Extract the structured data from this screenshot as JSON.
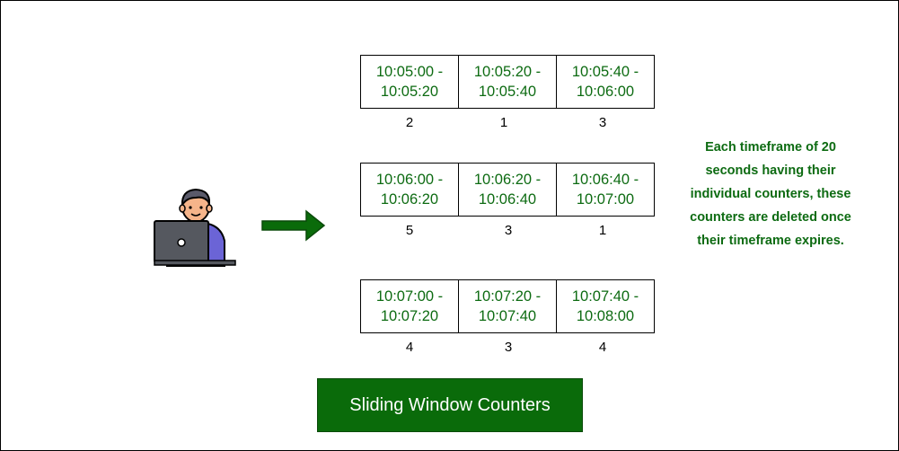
{
  "rows": [
    {
      "windows": [
        {
          "start": "10:05:00 -",
          "end": "10:05:20",
          "count": "2"
        },
        {
          "start": "10:05:20 -",
          "end": "10:05:40",
          "count": "1"
        },
        {
          "start": "10:05:40 -",
          "end": "10:06:00",
          "count": "3"
        }
      ]
    },
    {
      "windows": [
        {
          "start": "10:06:00 -",
          "end": "10:06:20",
          "count": "5"
        },
        {
          "start": "10:06:20 -",
          "end": "10:06:40",
          "count": "3"
        },
        {
          "start": "10:06:40 -",
          "end": "10:07:00",
          "count": "1"
        }
      ]
    },
    {
      "windows": [
        {
          "start": "10:07:00 -",
          "end": "10:07:20",
          "count": "4"
        },
        {
          "start": "10:07:20 -",
          "end": "10:07:40",
          "count": "3"
        },
        {
          "start": "10:07:40 -",
          "end": "10:08:00",
          "count": "4"
        }
      ]
    }
  ],
  "note": {
    "line1": "Each timeframe of 20",
    "line2": "seconds having their",
    "line3": "individual counters, these",
    "line4": "counters are deleted once",
    "line5": "their timeframe expires."
  },
  "title": "Sliding Window Counters",
  "icons": {
    "user": "user-with-laptop-icon",
    "arrow": "right-arrow-icon"
  },
  "colors": {
    "text_green": "#0d6b12",
    "title_bg": "#0a6b0a",
    "arrow_green": "#0a6b0a",
    "border": "#000000"
  }
}
